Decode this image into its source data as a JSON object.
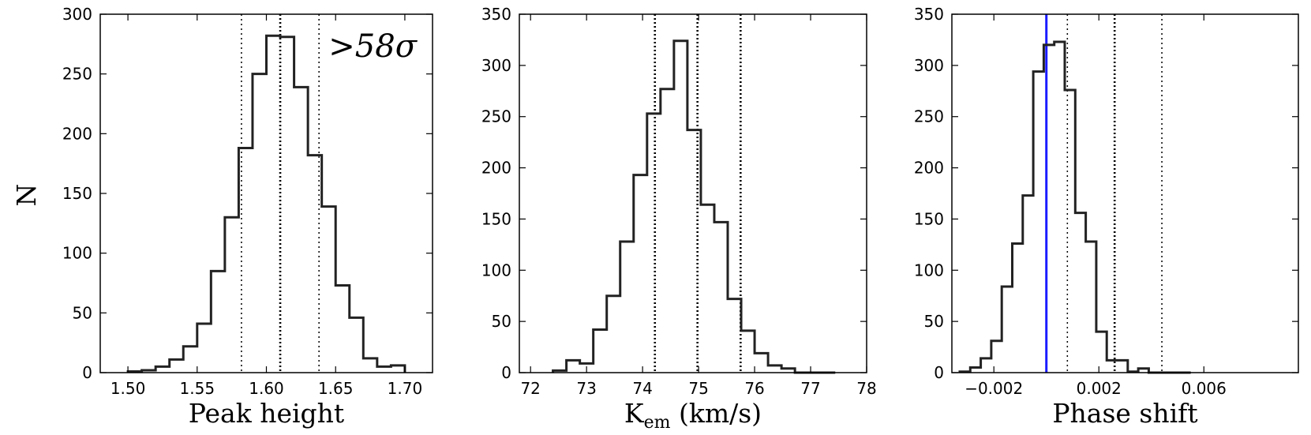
{
  "chart_data": [
    {
      "type": "histogram",
      "xlabel": "Peak height",
      "ylabel": "N",
      "annotation": ">58σ",
      "xlim": [
        1.48,
        1.72
      ],
      "ylim": [
        0,
        300
      ],
      "xticks": [
        1.5,
        1.55,
        1.6,
        1.65,
        1.7
      ],
      "xtick_labels": [
        "1.50",
        "1.55",
        "1.60",
        "1.65",
        "1.70"
      ],
      "yticks": [
        0,
        50,
        100,
        150,
        200,
        250,
        300
      ],
      "bin_edges": [
        1.5,
        1.51,
        1.52,
        1.53,
        1.54,
        1.55,
        1.56,
        1.57,
        1.58,
        1.59,
        1.6,
        1.61,
        1.62,
        1.63,
        1.64,
        1.65,
        1.66,
        1.67,
        1.68,
        1.69,
        1.7
      ],
      "counts": [
        1,
        2,
        5,
        11,
        22,
        41,
        85,
        130,
        188,
        250,
        282,
        281,
        239,
        182,
        139,
        73,
        46,
        12,
        5,
        6
      ],
      "vlines": [
        {
          "x": 1.582,
          "style": "thin-dotted",
          "color": "#000000"
        },
        {
          "x": 1.61,
          "style": "thick-dotted",
          "color": "#000000"
        },
        {
          "x": 1.638,
          "style": "thin-dotted",
          "color": "#000000"
        }
      ]
    },
    {
      "type": "histogram",
      "xlabel": "K",
      "xlabel_sub": "em",
      "xlabel_unit": " (km/s)",
      "ylabel": "",
      "xlim": [
        71.8,
        78.0
      ],
      "ylim": [
        0,
        350
      ],
      "xticks": [
        72,
        73,
        74,
        75,
        76,
        77,
        78
      ],
      "xtick_labels": [
        "72",
        "73",
        "74",
        "75",
        "76",
        "77",
        "78"
      ],
      "yticks": [
        0,
        50,
        100,
        150,
        200,
        250,
        300,
        350
      ],
      "bin_edges": [
        72.4,
        72.64,
        72.88,
        73.12,
        73.36,
        73.6,
        73.84,
        74.08,
        74.32,
        74.56,
        74.8,
        75.04,
        75.28,
        75.52,
        75.76,
        76.0,
        76.24,
        76.48,
        76.72,
        76.96,
        77.2,
        77.44
      ],
      "counts": [
        2,
        12,
        9,
        42,
        75,
        128,
        193,
        253,
        277,
        324,
        237,
        164,
        147,
        72,
        41,
        19,
        7,
        4,
        0,
        0,
        0
      ],
      "vlines": [
        {
          "x": 74.22,
          "style": "thick-dotted",
          "color": "#000000"
        },
        {
          "x": 74.98,
          "style": "thick-dotted",
          "color": "#000000"
        },
        {
          "x": 75.75,
          "style": "thick-dotted",
          "color": "#000000"
        }
      ]
    },
    {
      "type": "histogram",
      "xlabel": "Phase shift",
      "ylabel": "",
      "xlim": [
        -0.0036,
        0.0096
      ],
      "ylim": [
        0,
        350
      ],
      "xticks": [
        -0.002,
        0.002,
        0.006
      ],
      "xtick_labels": [
        "−0.002",
        "0.002",
        "0.006"
      ],
      "yticks": [
        0,
        50,
        100,
        150,
        200,
        250,
        300,
        350
      ],
      "bin_edges": [
        -0.0033,
        -0.0029,
        -0.0025,
        -0.0021,
        -0.0017,
        -0.0013,
        -0.0009,
        -0.0005,
        -0.0001,
        0.0003,
        0.0007,
        0.0011,
        0.0015,
        0.0019,
        0.0023,
        0.0027,
        0.0031,
        0.0035,
        0.0039,
        0.0043,
        0.0047,
        0.0051,
        0.0055
      ],
      "counts": [
        1,
        5,
        14,
        31,
        84,
        126,
        173,
        294,
        320,
        323,
        276,
        156,
        128,
        40,
        12,
        12,
        1,
        4,
        0,
        0,
        0,
        0
      ],
      "vlines": [
        {
          "x": 0.0,
          "style": "solid",
          "color": "#1a1aff"
        },
        {
          "x": 0.0008,
          "style": "thin-dotted",
          "color": "#000000"
        },
        {
          "x": 0.0026,
          "style": "thick-dotted",
          "color": "#000000"
        },
        {
          "x": 0.0044,
          "style": "thin-dotted",
          "color": "#000000"
        }
      ]
    }
  ]
}
